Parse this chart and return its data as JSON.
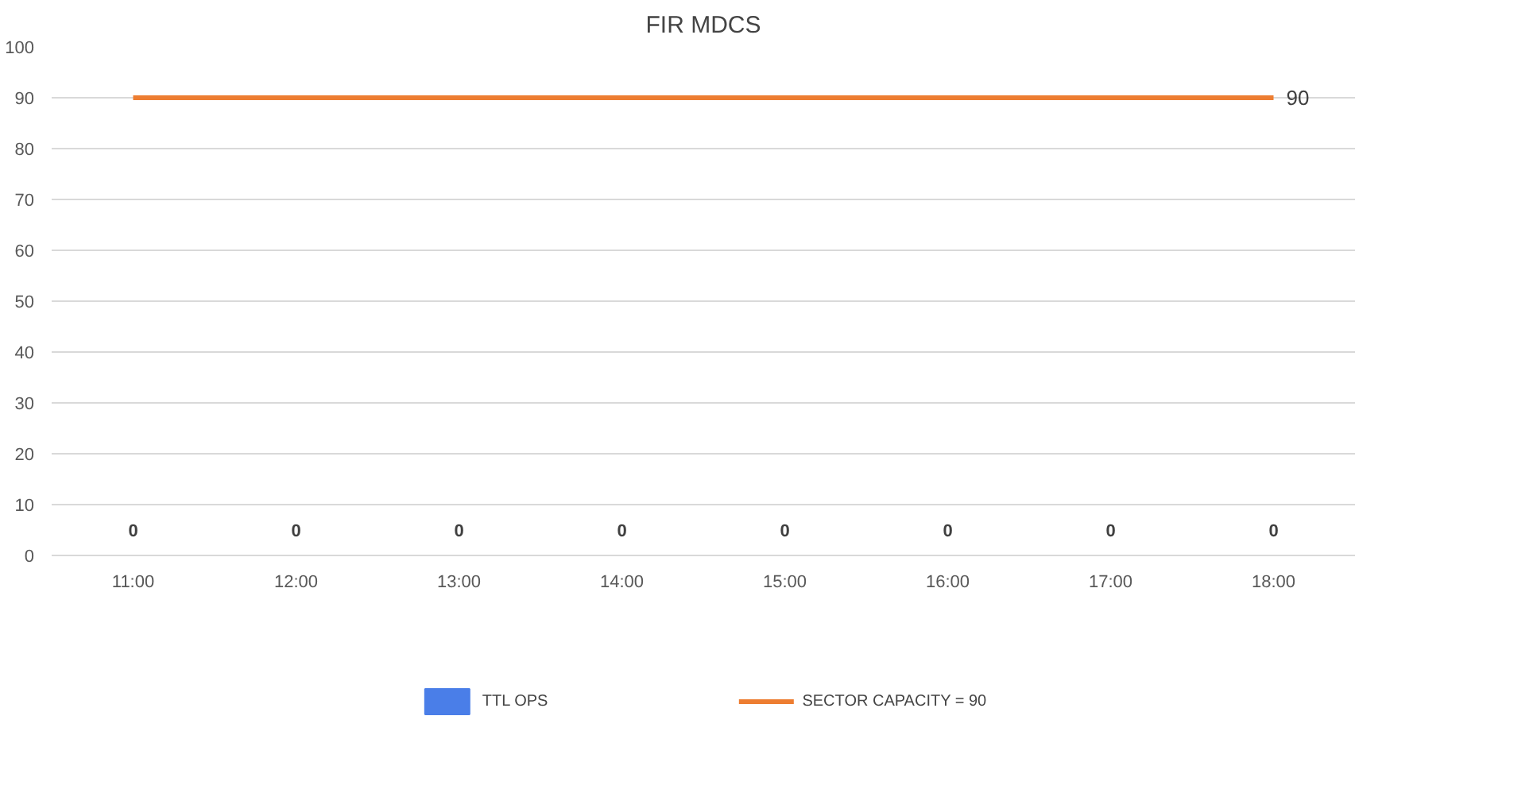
{
  "chart_data": {
    "type": "bar",
    "title": "FIR MDCS",
    "categories": [
      "11:00",
      "12:00",
      "13:00",
      "14:00",
      "15:00",
      "16:00",
      "17:00",
      "18:00"
    ],
    "series": [
      {
        "name": "TTL OPS",
        "color": "#4a7ee8",
        "values": [
          0,
          0,
          0,
          0,
          0,
          0,
          0,
          0
        ],
        "value_labels": [
          "0",
          "0",
          "0",
          "0",
          "0",
          "0",
          "0",
          "0"
        ]
      },
      {
        "name": "SECTOR CAPACITY = 90",
        "type": "line",
        "color": "#ed7d31",
        "values": [
          90,
          90,
          90,
          90,
          90,
          90,
          90,
          90
        ],
        "value_labels": [
          null,
          null,
          null,
          null,
          null,
          null,
          null,
          "90"
        ]
      }
    ],
    "ylim": [
      0,
      100
    ],
    "yticks": [
      0,
      10,
      20,
      30,
      40,
      50,
      60,
      70,
      80,
      90,
      100
    ],
    "grid": "y",
    "legend": "bottom",
    "marker": "none",
    "line_style": "solid"
  }
}
